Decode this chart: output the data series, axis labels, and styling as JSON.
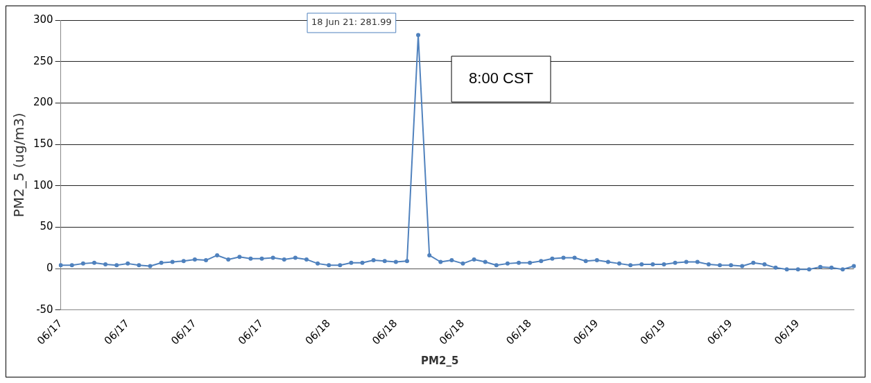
{
  "chart_data": {
    "type": "line",
    "ylabel": "PM2_5 (ug/m3)",
    "categories": [
      "06/17",
      null,
      null,
      null,
      null,
      null,
      "06/17",
      null,
      null,
      null,
      null,
      null,
      "06/17",
      null,
      null,
      null,
      null,
      null,
      "06/17",
      null,
      null,
      null,
      null,
      null,
      "06/18",
      null,
      null,
      null,
      null,
      null,
      "06/18",
      null,
      null,
      null,
      null,
      null,
      "06/18",
      null,
      null,
      null,
      null,
      null,
      "06/18",
      null,
      null,
      null,
      null,
      null,
      "06/19",
      null,
      null,
      null,
      null,
      null,
      "06/19",
      null,
      null,
      null,
      null,
      null,
      "06/19",
      null,
      null,
      null,
      null,
      null,
      "06/19",
      null,
      null,
      null,
      null,
      null
    ],
    "series": [
      {
        "name": "PM2_5",
        "color": "#4f81bd",
        "values": [
          4,
          4,
          6,
          7,
          5,
          4,
          6,
          4,
          3,
          7,
          8,
          9,
          11,
          10,
          16,
          11,
          14,
          12,
          12,
          13,
          11,
          13,
          11,
          6,
          4,
          4,
          7,
          7,
          10,
          9,
          8,
          9,
          281.99,
          16,
          8,
          10,
          6,
          11,
          8,
          4,
          6,
          7,
          7,
          9,
          12,
          13,
          13,
          9,
          10,
          8,
          6,
          4,
          5,
          5,
          5,
          7,
          8,
          8,
          5,
          4,
          4,
          3,
          7,
          5,
          1,
          -1,
          -1,
          -1,
          2,
          1,
          -1,
          3
        ]
      }
    ],
    "ylim": [
      -50,
      300
    ],
    "yticks": [
      -50,
      0,
      50,
      100,
      150,
      200,
      250,
      300
    ],
    "grid": "y",
    "legend": "bottom",
    "marker": "circle",
    "line_style": "solid",
    "annotations": [
      "18 Jun 21: 281.99",
      "8:00 CST"
    ]
  }
}
